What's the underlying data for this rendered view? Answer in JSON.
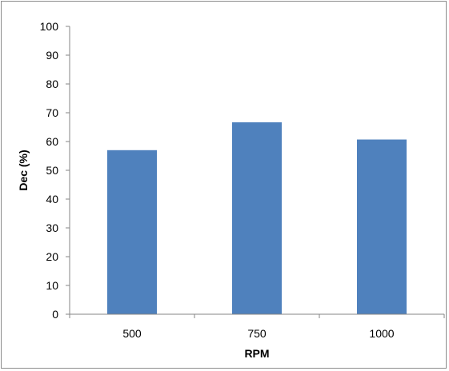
{
  "chart_data": {
    "type": "bar",
    "categories": [
      "500",
      "750",
      "1000"
    ],
    "values": [
      57,
      66.7,
      60.7
    ],
    "xlabel": "RPM",
    "ylabel": "Dec (%)",
    "ylim": [
      0,
      100
    ],
    "yticks": [
      "0",
      "10",
      "20",
      "30",
      "40",
      "50",
      "60",
      "70",
      "80",
      "90",
      "100"
    ],
    "grid": false,
    "legend": "none",
    "bar_color": "#4f81bd",
    "axis_color": "#868686"
  }
}
